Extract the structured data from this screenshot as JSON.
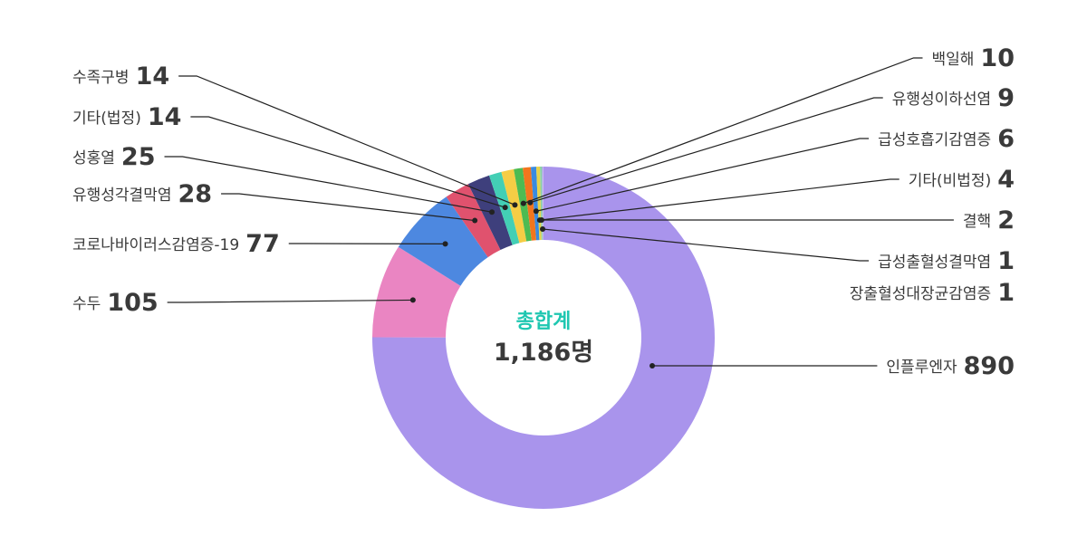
{
  "chart_data": {
    "type": "pie",
    "center_title": "총합계",
    "center_total": "1,186명",
    "legend": "none",
    "slices": [
      {
        "label": "인플루엔자",
        "value": 890,
        "color": "#a994ec"
      },
      {
        "label": "수두",
        "value": 105,
        "color": "#ea85c2"
      },
      {
        "label": "코로나바이러스감염증-19",
        "value": 77,
        "color": "#4d88e0"
      },
      {
        "label": "유행성각결막염",
        "value": 28,
        "color": "#e0526e"
      },
      {
        "label": "성홍열",
        "value": 25,
        "color": "#3e3f7c"
      },
      {
        "label": "기타(법정)",
        "value": 14,
        "color": "#43cfb5"
      },
      {
        "label": "수족구병",
        "value": 14,
        "color": "#f5cd45"
      },
      {
        "label": "백일해",
        "value": 10,
        "color": "#4dbb52"
      },
      {
        "label": "유행성이하선염",
        "value": 9,
        "color": "#f2761e"
      },
      {
        "label": "급성호흡기감염증",
        "value": 6,
        "color": "#3a8adf"
      },
      {
        "label": "기타(비법정)",
        "value": 4,
        "color": "#e7d24a"
      },
      {
        "label": "결핵",
        "value": 2,
        "color": "#8fd4a3"
      },
      {
        "label": "급성출혈성결막염",
        "value": 1,
        "color": "#9bb0d8"
      },
      {
        "label": "장출혈성대장균감염증",
        "value": 1,
        "color": "#c9b7f0"
      }
    ]
  }
}
